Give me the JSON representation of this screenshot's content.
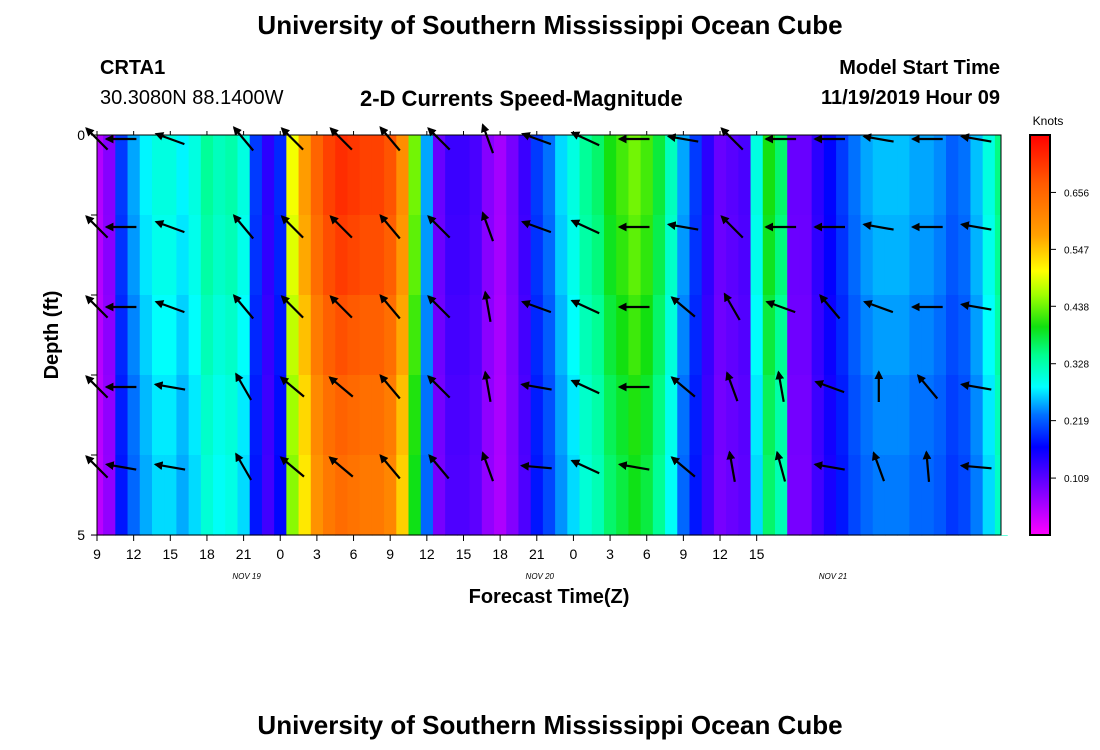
{
  "header": {
    "title": "University of Southern Mississippi Ocean Cube",
    "station": "CRTA1",
    "coords": "30.3080N 88.1400W",
    "subtitle": "2-D Currents Speed-Magnitude",
    "model_label": "Model Start Time",
    "model_time": "11/19/2019 Hour 09"
  },
  "footer": {
    "title": "University of Southern Mississippi Ocean Cube"
  },
  "colorbar": {
    "units": "Knots",
    "ticks": [
      "0.109",
      "0.219",
      "0.328",
      "0.438",
      "0.547",
      "0.656"
    ],
    "min": 0.0,
    "max": 0.766
  },
  "chart_data": {
    "type": "heatmap",
    "xlabel": "Forecast Time(Z)",
    "ylabel": "Depth (ft)",
    "ylim": [
      5,
      0
    ],
    "y_ticks": [
      "0",
      "5"
    ],
    "x_ticks": [
      "9",
      "12",
      "15",
      "18",
      "21",
      "0",
      "3",
      "6",
      "9",
      "12",
      "15",
      "18",
      "21",
      "0",
      "3",
      "6",
      "9",
      "12",
      "15"
    ],
    "date_labels": [
      "NOV 19",
      "NOV 20",
      "NOV 21"
    ],
    "hours_per_column": 1,
    "depth_levels": 5,
    "column_speeds": [
      0.05,
      0.08,
      0.2,
      0.25,
      0.28,
      0.3,
      0.3,
      0.28,
      0.3,
      0.34,
      0.32,
      0.33,
      0.3,
      0.2,
      0.14,
      0.19,
      0.5,
      0.58,
      0.66,
      0.7,
      0.72,
      0.71,
      0.7,
      0.7,
      0.68,
      0.6,
      0.44,
      0.25,
      0.1,
      0.13,
      0.13,
      0.12,
      0.08,
      0.06,
      0.09,
      0.13,
      0.2,
      0.23,
      0.27,
      0.3,
      0.34,
      0.36,
      0.4,
      0.42,
      0.44,
      0.42,
      0.38,
      0.32,
      0.25,
      0.2,
      0.14,
      0.1,
      0.11,
      0.12,
      0.3,
      0.4,
      0.36,
      0.1,
      0.1,
      0.14,
      0.17,
      0.2,
      0.23,
      0.25,
      0.26,
      0.26,
      0.26,
      0.25,
      0.25,
      0.24,
      0.22,
      0.23,
      0.26,
      0.3,
      0.35
    ],
    "depth_factors": [
      1.0,
      0.98,
      0.95,
      0.92,
      0.9
    ],
    "vector_hours": [
      0,
      2,
      6,
      12,
      16,
      20,
      24,
      28,
      32,
      36,
      40,
      44,
      48,
      52,
      56,
      60,
      64,
      68,
      72
    ],
    "vector_directions_deg": [
      [
        135,
        90,
        110,
        140,
        135,
        135,
        140,
        135,
        160,
        110,
        115,
        90,
        100,
        135,
        90,
        90,
        100,
        90,
        100
      ],
      [
        135,
        90,
        110,
        140,
        135,
        135,
        140,
        135,
        160,
        110,
        115,
        90,
        100,
        135,
        90,
        90,
        100,
        90,
        100
      ],
      [
        135,
        90,
        110,
        140,
        135,
        135,
        140,
        135,
        170,
        110,
        115,
        90,
        130,
        150,
        110,
        140,
        110,
        90,
        100
      ],
      [
        135,
        90,
        100,
        150,
        130,
        130,
        140,
        135,
        170,
        100,
        115,
        90,
        130,
        160,
        170,
        110,
        180,
        140,
        100
      ],
      [
        135,
        100,
        100,
        150,
        130,
        130,
        140,
        140,
        160,
        95,
        115,
        100,
        130,
        170,
        165,
        100,
        160,
        175,
        95
      ]
    ]
  }
}
